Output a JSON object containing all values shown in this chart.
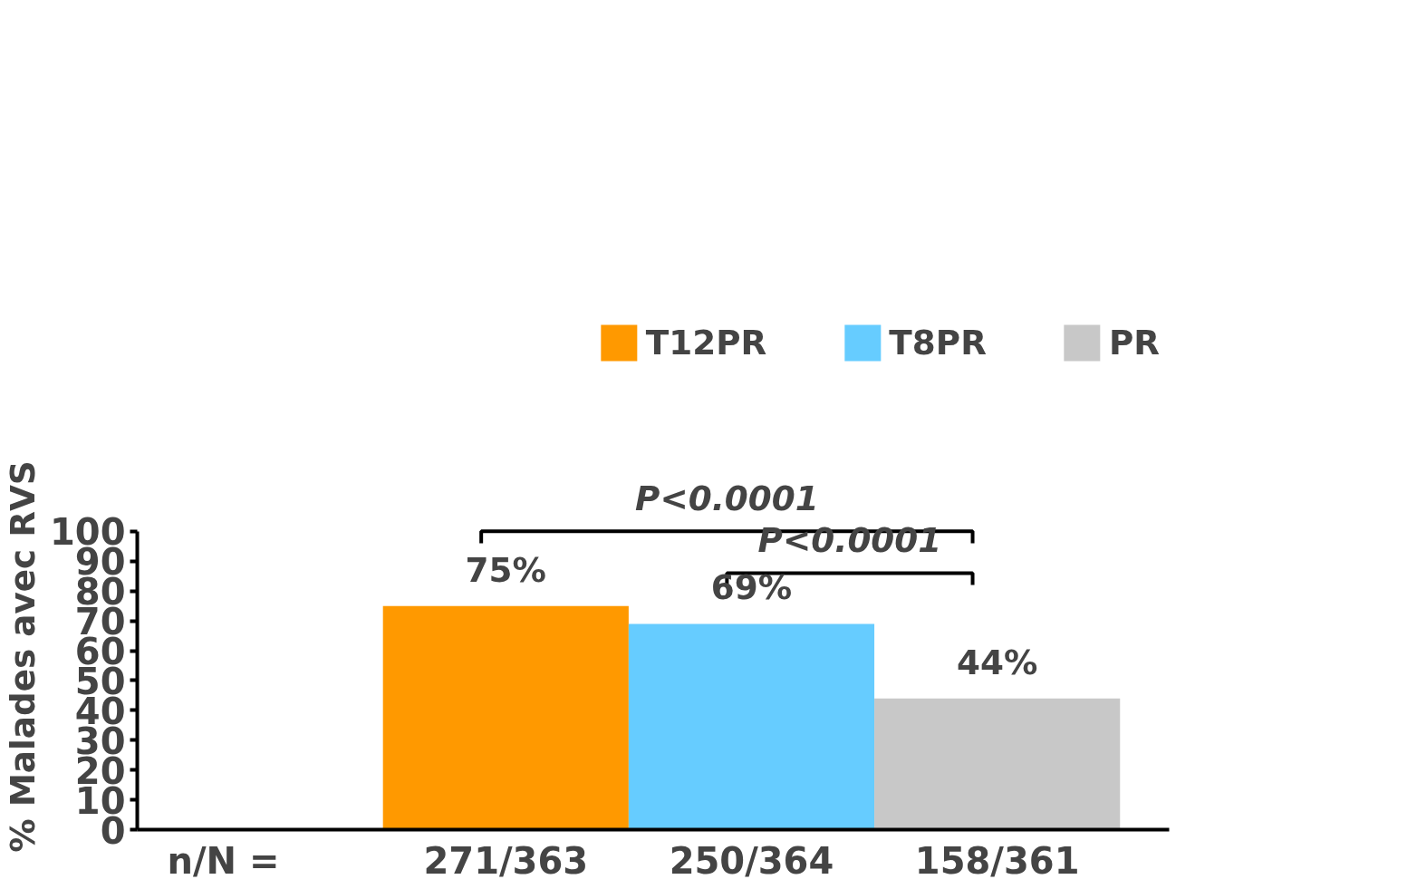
{
  "chart_data": {
    "type": "bar",
    "stacked": true,
    "ylabel": "% Malades avec  RVS",
    "categories": [
      "271/363",
      "250/364",
      "158/361"
    ],
    "series": [
      {
        "name": "T12PR",
        "color": "#ff9900",
        "values": [
          75,
          null,
          null
        ],
        "value_labels": [
          "75%",
          null,
          null
        ]
      },
      {
        "name": "T8PR",
        "color": "#66ccff",
        "values": [
          null,
          69,
          null
        ],
        "value_labels": [
          null,
          "69%",
          null
        ]
      },
      {
        "name": "PR",
        "color": "#c8c8c8",
        "values": [
          null,
          null,
          44
        ],
        "value_labels": [
          null,
          null,
          "44%"
        ]
      }
    ],
    "ylim": [
      0,
      100
    ],
    "yticks": [
      0,
      10,
      20,
      30,
      40,
      50,
      60,
      70,
      80,
      90,
      100
    ],
    "annotations": [
      "n/N =",
      "P<0.0001",
      "P<0.0001"
    ],
    "grid": false,
    "legend": "top right"
  }
}
